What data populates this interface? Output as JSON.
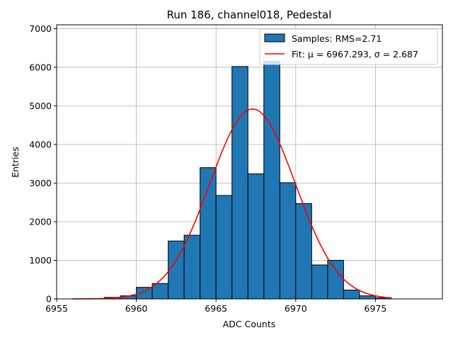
{
  "chart_data": {
    "type": "bar",
    "title": "Run 186, channel018, Pedestal",
    "xlabel": "ADC Counts",
    "ylabel": "Entries",
    "xlim": [
      6955,
      6979.2
    ],
    "ylim": [
      0,
      7100
    ],
    "xticks": [
      6955,
      6960,
      6965,
      6970,
      6975
    ],
    "yticks": [
      0,
      1000,
      2000,
      3000,
      4000,
      5000,
      6000,
      7000
    ],
    "grid": true,
    "legend_position": "top-right",
    "bar_color": "#1f77b4",
    "fit_color": "#ff0000",
    "bins": [
      {
        "x0": 6958,
        "x1": 6959,
        "count": 40
      },
      {
        "x0": 6959,
        "x1": 6960,
        "count": 80
      },
      {
        "x0": 6960,
        "x1": 6961,
        "count": 300
      },
      {
        "x0": 6961,
        "x1": 6962,
        "count": 400
      },
      {
        "x0": 6962,
        "x1": 6963,
        "count": 1500
      },
      {
        "x0": 6963,
        "x1": 6964,
        "count": 1650
      },
      {
        "x0": 6964,
        "x1": 6965,
        "count": 3400
      },
      {
        "x0": 6965,
        "x1": 6966,
        "count": 2680
      },
      {
        "x0": 6966,
        "x1": 6967,
        "count": 6020
      },
      {
        "x0": 6967,
        "x1": 6968,
        "count": 3240
      },
      {
        "x0": 6968,
        "x1": 6969,
        "count": 6150
      },
      {
        "x0": 6969,
        "x1": 6970,
        "count": 3010
      },
      {
        "x0": 6970,
        "x1": 6971,
        "count": 2470
      },
      {
        "x0": 6971,
        "x1": 6972,
        "count": 880
      },
      {
        "x0": 6972,
        "x1": 6973,
        "count": 1000
      },
      {
        "x0": 6973,
        "x1": 6974,
        "count": 230
      },
      {
        "x0": 6974,
        "x1": 6975,
        "count": 80
      },
      {
        "x0": 6975,
        "x1": 6976,
        "count": 30
      }
    ],
    "fit": {
      "mu": 6967.293,
      "sigma": 2.687,
      "amplitude": 4920,
      "x_range": [
        6956,
        6976
      ]
    },
    "legend": [
      {
        "label": "Samples: RMS=2.71",
        "kind": "patch"
      },
      {
        "label": "Fit: μ = 6967.293, σ = 2.687",
        "kind": "line"
      }
    ]
  }
}
